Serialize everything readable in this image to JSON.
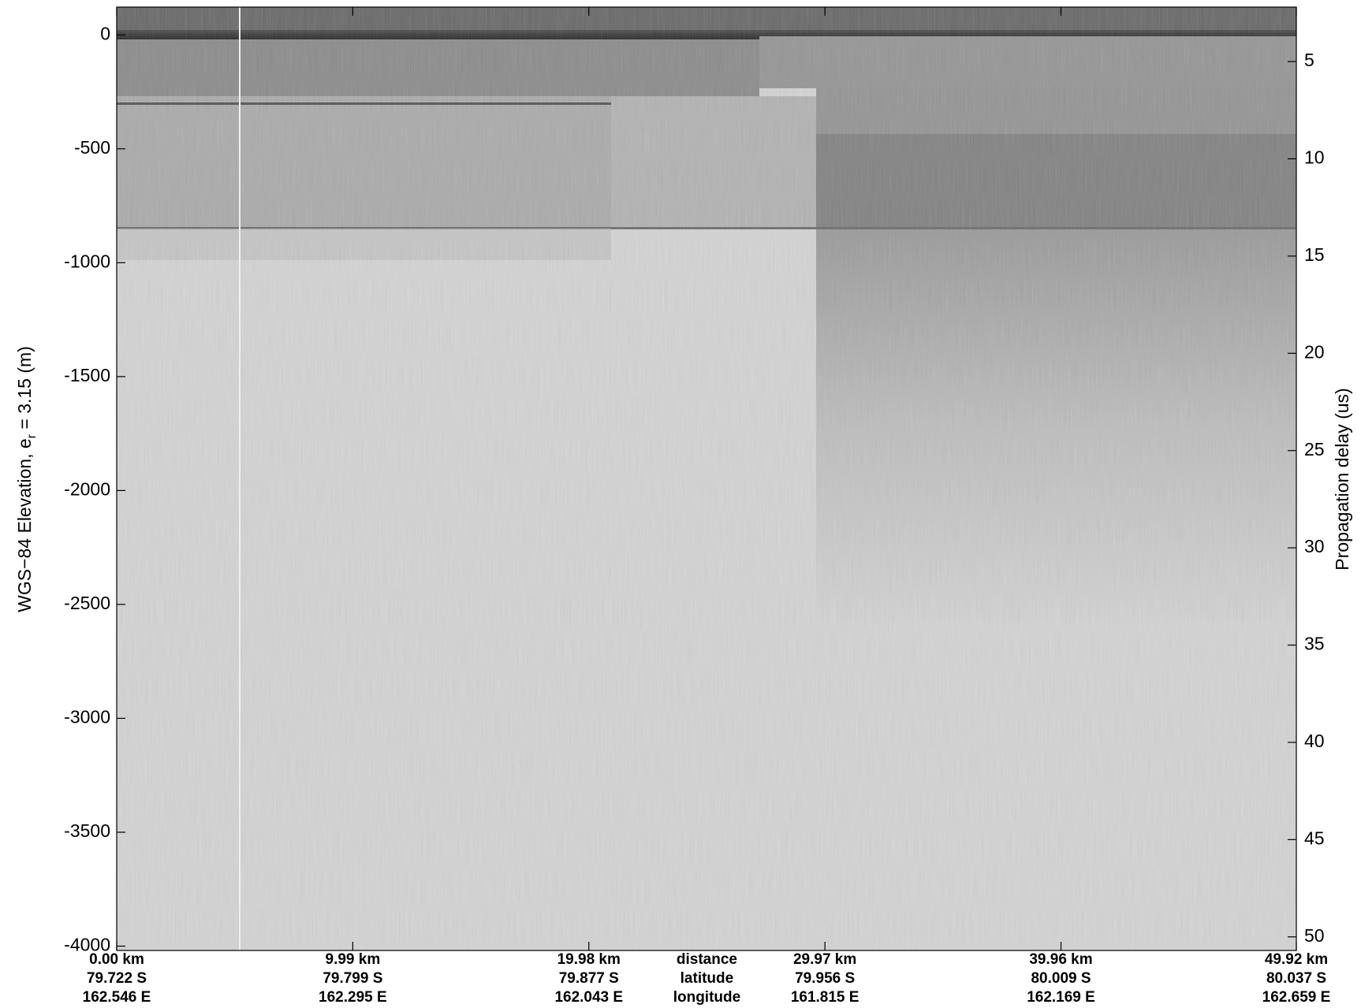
{
  "chart_data": {
    "type": "radargram",
    "y_label": {
      "main": "WGS−84 Elevation, e",
      "subscript": "r",
      "suffix": " = 3.15 (m)"
    },
    "y2_label": "Propagation delay (us)",
    "ylim": [
      -4019,
      122
    ],
    "yticks": [
      0,
      -500,
      -1000,
      -1500,
      -2000,
      -2500,
      -3000,
      -3500,
      -4000
    ],
    "y2lim": [
      50.7,
      2.2
    ],
    "y2ticks": [
      5,
      10,
      15,
      20,
      25,
      30,
      35,
      40,
      45,
      50
    ],
    "xlim": [
      0,
      49.92
    ],
    "xticks": [
      {
        "value": 0,
        "label": "0.00 km"
      },
      {
        "value": 9.99,
        "label": "9.99 km"
      },
      {
        "value": 19.98,
        "label": "19.98 km"
      },
      {
        "value": 29.97,
        "label": "29.97 km"
      },
      {
        "value": 39.96,
        "label": "39.96 km"
      },
      {
        "value": 49.92,
        "label": "49.92 km"
      }
    ],
    "latitude_labels": [
      "79.722 S",
      "79.799 S",
      "79.877 S",
      "79.956 S",
      "80.009 S",
      "80.037 S"
    ],
    "longitude_labels": [
      "162.546 E",
      "162.295 E",
      "162.043 E",
      "161.815 E",
      "162.169 E",
      "162.659 E"
    ],
    "row_labels": [
      "distance",
      "latitude",
      "longitude"
    ]
  }
}
